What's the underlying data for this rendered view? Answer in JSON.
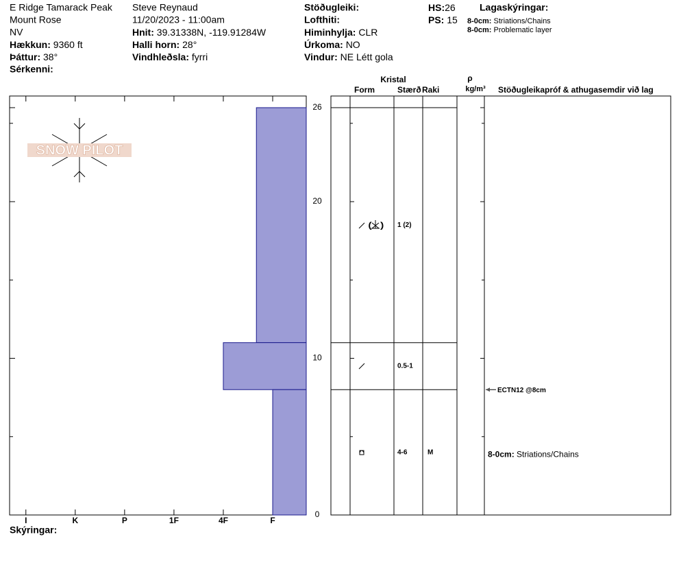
{
  "header": {
    "location": [
      "E Ridge Tamarack Peak",
      "Mount Rose",
      "NV"
    ],
    "elevation": {
      "label": "Hækkun:",
      "value": "9360 ft"
    },
    "aspect": {
      "label": "Þáttur:",
      "value": "38°"
    },
    "features": {
      "label": "Sérkenni:"
    },
    "observer": "Steve Reynaud",
    "datetime": "11/20/2023 - 11:00am",
    "coords": {
      "label": "Hnit:",
      "value": "39.31338N, -119.91284W"
    },
    "slope": {
      "label": "Halli horn:",
      "value": "28°"
    },
    "wind_loading": {
      "label": "Vindhleðsla:",
      "value": "fyrri"
    },
    "stability": {
      "label": "Stöðugleiki:"
    },
    "air_temp": {
      "label": "Lofthiti:"
    },
    "sky": {
      "label": "Himinhylja:",
      "value": "CLR"
    },
    "precip": {
      "label": "Úrkoma:",
      "value": "NO"
    },
    "wind": {
      "label": "Vindur:",
      "value": "NE Létt gola"
    },
    "hs": {
      "label": "HS:",
      "value": "26"
    },
    "ps": {
      "label": "PS:",
      "value": "15"
    },
    "legend": {
      "title": "Lagaskýringar:",
      "items": [
        {
          "label": "8-0cm:",
          "value": "Striations/Chains"
        },
        {
          "label": "8-0cm:",
          "value": "Problematic layer"
        }
      ]
    }
  },
  "logo": "SNOW PILOT",
  "notes_label": "Skýringar:",
  "table_header": {
    "crystal": "Kristal",
    "form": "Form",
    "size": "Stærð",
    "moisture": "Raki",
    "density": "ρ",
    "density_unit": "kg/m³",
    "comments": "Stöðugleikapróf & athugasemdir við lag"
  },
  "chart_data": {
    "type": "snow-profile",
    "ylim": [
      0,
      26
    ],
    "yticks": [
      0,
      10,
      20,
      26
    ],
    "minor_yticks": [
      5,
      15,
      25
    ],
    "xlim": [
      6.33,
      0.32
    ],
    "xticks": [
      {
        "value": 6,
        "label": "I"
      },
      {
        "value": 5,
        "label": "K"
      },
      {
        "value": 4,
        "label": "P"
      },
      {
        "value": 3,
        "label": "1F"
      },
      {
        "value": 2,
        "label": "4F"
      },
      {
        "value": 1,
        "label": "F"
      }
    ],
    "color": "#9c9cd6",
    "layers": [
      {
        "top": 26,
        "bottom": 11,
        "hardness": 1.33,
        "size": "1 (2)"
      },
      {
        "top": 11,
        "bottom": 8,
        "hardness": 2,
        "size": "0.5-1"
      },
      {
        "top": 8,
        "bottom": 0,
        "hardness": 1,
        "size": "4-6",
        "moisture": "M",
        "comment_label": "8-0cm:",
        "comment": "Striations/Chains"
      }
    ],
    "tests": [
      {
        "depth": 8,
        "label": "ECTN12 @8cm"
      }
    ]
  }
}
